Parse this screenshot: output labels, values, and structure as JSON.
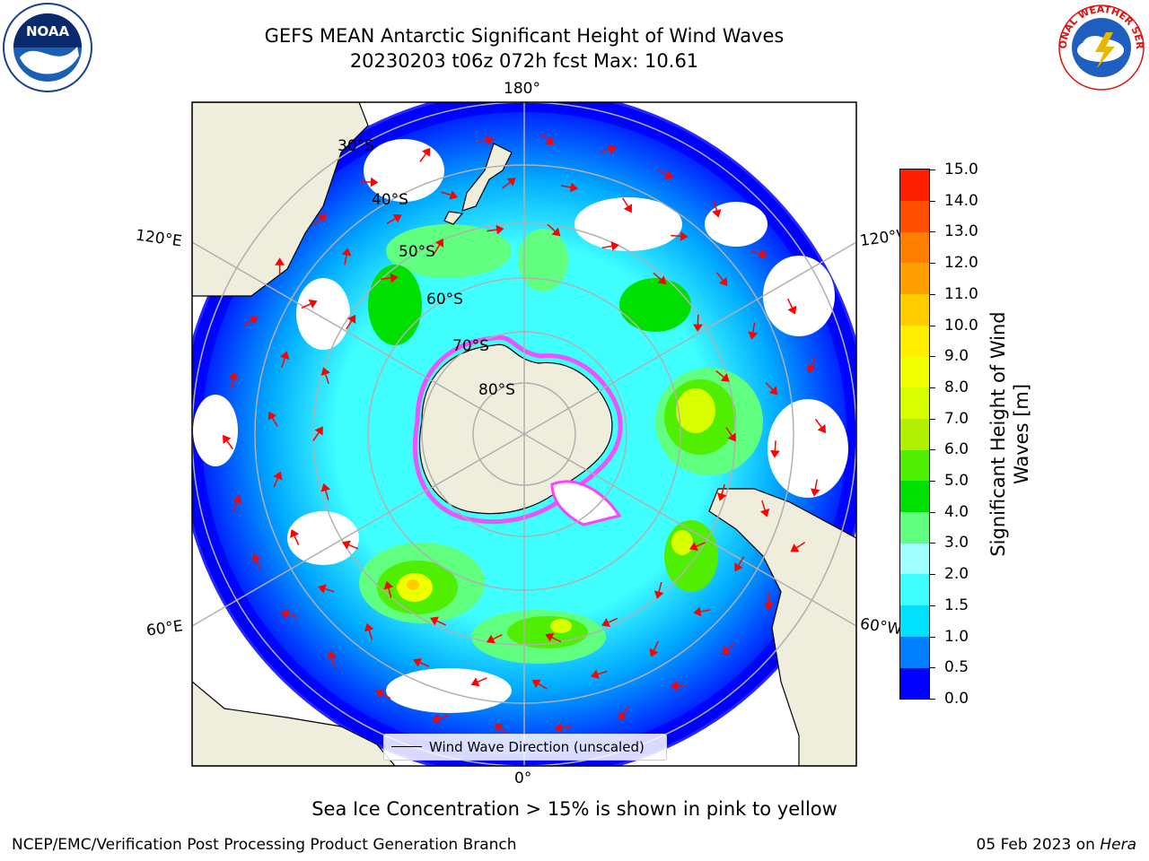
{
  "title": {
    "line1": "GEFS MEAN Antarctic Significant Height of Wind Waves",
    "line2": "20230203 t06z 072h fcst   Max: 10.61"
  },
  "logos": {
    "left": "noaa-logo",
    "right": "national-weather-service-logo",
    "right_text": "NATIONAL WEATHER SERVICE"
  },
  "map": {
    "projection": "south-polar-stereographic",
    "latitude_labels": [
      "30°S",
      "40°S",
      "50°S",
      "60°S",
      "70°S",
      "80°S"
    ],
    "longitude_labels": {
      "top": "180°",
      "bottom": "0°",
      "upper_left": "120°E",
      "upper_right": "120°W",
      "lower_left": "60°E",
      "lower_right": "60°W"
    },
    "colors": {
      "land": "#efeddc",
      "coastline": "#000000",
      "grid": "#b0b0b0",
      "arrows": "#ff0000",
      "sea_ice": "#ff40ff"
    }
  },
  "legend": {
    "entry": "Wind Wave Direction (unscaled)"
  },
  "colorbar": {
    "label": "Significant Height of Wind Waves [m]",
    "ticks": [
      "0.0",
      "0.5",
      "1.0",
      "1.5",
      "2.0",
      "3.0",
      "4.0",
      "5.0",
      "6.0",
      "7.0",
      "8.0",
      "9.0",
      "10.0",
      "11.0",
      "12.0",
      "13.0",
      "14.0",
      "15.0"
    ],
    "colors": [
      "#0000ff",
      "#0080ff",
      "#00e0ff",
      "#40ffff",
      "#a0ffff",
      "#60ff80",
      "#00e000",
      "#50ee00",
      "#b0f000",
      "#d8ff00",
      "#f0ff00",
      "#ffee00",
      "#ffcc00",
      "#ffa000",
      "#ff8000",
      "#ff5000",
      "#ff2000"
    ]
  },
  "note": "Sea Ice Concentration > 15% is shown in pink to yellow",
  "footer": {
    "left": "NCEP/EMC/Verification Post Processing Product Generation Branch",
    "date": "05 Feb 2023 on ",
    "machine": "Hera"
  }
}
